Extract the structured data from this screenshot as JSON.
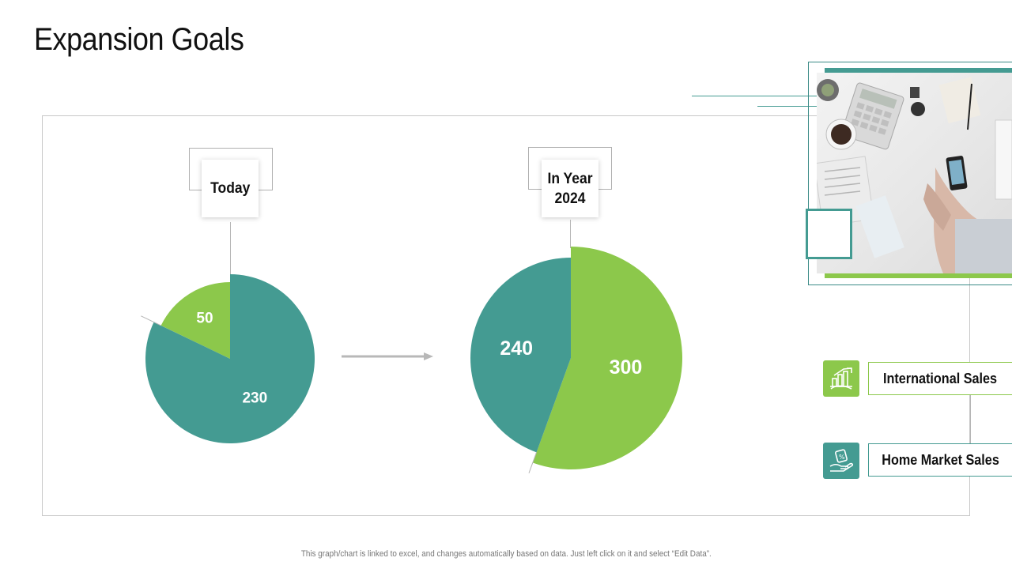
{
  "title": "Expansion Goals",
  "footnote": "This graph/chart is linked to excel, and changes automatically  based on data. Just left click on it and select “Edit Data”.",
  "colors": {
    "international": "#8cc84b",
    "home": "#449b92",
    "accent_line": "#3a8a86"
  },
  "legend": {
    "international_label": "International Sales",
    "home_label": "Home Market Sales",
    "international_icon": "growth-chart-icon",
    "home_icon": "money-hand-icon"
  },
  "photo": {
    "description_icon": "office-desk-photo"
  },
  "chart_data": [
    {
      "type": "pie",
      "label": "Today",
      "slices": [
        {
          "name": "International Sales",
          "value": 50
        },
        {
          "name": "Home Market Sales",
          "value": 230
        }
      ]
    },
    {
      "type": "pie",
      "label": "In Year\n2024",
      "slices": [
        {
          "name": "International Sales",
          "value": 300
        },
        {
          "name": "Home Market Sales",
          "value": 240
        }
      ]
    }
  ]
}
